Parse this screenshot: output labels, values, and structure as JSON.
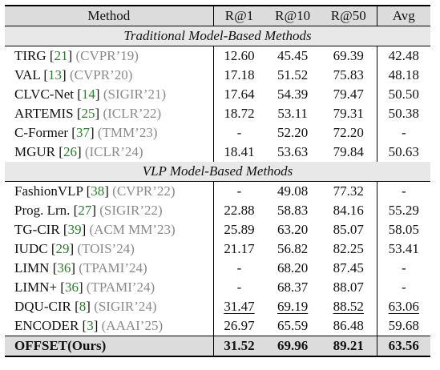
{
  "header": {
    "method": "Method",
    "r1": "R@1",
    "r10": "R@10",
    "r50": "R@50",
    "avg": "Avg"
  },
  "sections": [
    {
      "title": "Traditional Model-Based Methods",
      "rows": [
        {
          "name": "TIRG",
          "ref": "21",
          "venue": "(CVPR’19)",
          "r1": "12.60",
          "r10": "45.45",
          "r50": "69.39",
          "avg": "42.48"
        },
        {
          "name": "VAL",
          "ref": "13",
          "venue": "(CVPR’20)",
          "r1": "17.18",
          "r10": "51.52",
          "r50": "75.83",
          "avg": "48.18"
        },
        {
          "name": "CLVC-Net",
          "ref": "14",
          "venue": "(SIGIR’21)",
          "r1": "17.64",
          "r10": "54.39",
          "r50": "79.47",
          "avg": "50.50"
        },
        {
          "name": "ARTEMIS",
          "ref": "25",
          "venue": "(ICLR’22)",
          "r1": "18.72",
          "r10": "53.11",
          "r50": "79.31",
          "avg": "50.38"
        },
        {
          "name": "C-Former",
          "ref": "37",
          "venue": "(TMM’23)",
          "r1": "-",
          "r10": "52.20",
          "r50": "72.20",
          "avg": "-"
        },
        {
          "name": "MGUR",
          "ref": "26",
          "venue": "(ICLR’24)",
          "r1": "18.41",
          "r10": "53.63",
          "r50": "79.84",
          "avg": "50.63"
        }
      ]
    },
    {
      "title": "VLP Model-Based Methods",
      "rows": [
        {
          "name": "FashionVLP",
          "ref": "38",
          "venue": "(CVPR’22)",
          "r1": "-",
          "r10": "49.08",
          "r50": "77.32",
          "avg": "-"
        },
        {
          "name": "Prog. Lrn.",
          "ref": "27",
          "venue": "(SIGIR’22)",
          "r1": "22.88",
          "r10": "58.83",
          "r50": "84.16",
          "avg": "55.29"
        },
        {
          "name": "TG-CIR",
          "ref": "39",
          "venue": "(ACM MM’23)",
          "r1": "25.89",
          "r10": "63.20",
          "r50": "85.07",
          "avg": "58.05"
        },
        {
          "name": "IUDC",
          "ref": "29",
          "venue": "(TOIS’24)",
          "r1": "21.17",
          "r10": "56.82",
          "r50": "82.25",
          "avg": "53.41"
        },
        {
          "name": "LIMN",
          "ref": "36",
          "venue": "(TPAMI’24)",
          "r1": "-",
          "r10": "68.20",
          "r50": "87.45",
          "avg": "-"
        },
        {
          "name": "LIMN+",
          "ref": "36",
          "venue": "(TPAMI’24)",
          "r1": "-",
          "r10": "68.37",
          "r50": "88.07",
          "avg": "-"
        },
        {
          "name": "DQU-CIR",
          "ref": "8",
          "venue": "(SIGIR’24)",
          "r1": "31.47",
          "r10": "69.19",
          "r50": "88.52",
          "avg": "63.06"
        },
        {
          "name": "ENCODER",
          "ref": "3",
          "venue": "(AAAI’25)",
          "r1": "26.97",
          "r10": "65.59",
          "r50": "86.48",
          "avg": "59.68"
        }
      ]
    }
  ],
  "final": {
    "name": "OFFSET(Ours)",
    "r1": "31.52",
    "r10": "69.96",
    "r50": "89.21",
    "avg": "63.56"
  },
  "underlined": [
    {
      "section": 1,
      "row": 6,
      "cols": [
        "r1",
        "r10",
        "r50",
        "avg"
      ]
    }
  ],
  "colors": {
    "ref": "#2f7a2f",
    "venue": "#8a8a8a",
    "header_bg": "#dcdcdc"
  }
}
